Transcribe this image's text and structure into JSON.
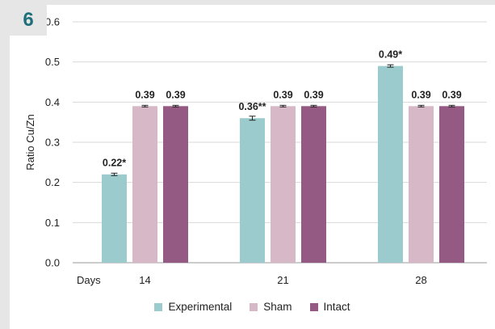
{
  "figure_label": "6",
  "chart_data": {
    "type": "bar",
    "x_prefix_label": "Days",
    "categories": [
      "14",
      "21",
      "28"
    ],
    "series": [
      {
        "name": "Experimental",
        "color": "#9ccbcd",
        "values": [
          0.22,
          0.36,
          0.49
        ],
        "errors": [
          0.003,
          0.005,
          0.003
        ],
        "labels": [
          "0.22*",
          "0.36**",
          "0.49*"
        ]
      },
      {
        "name": "Sham",
        "color": "#d6b8c6",
        "values": [
          0.39,
          0.39,
          0.39
        ],
        "errors": [
          0.002,
          0.002,
          0.002
        ],
        "labels": [
          "0.39",
          "0.39",
          "0.39"
        ]
      },
      {
        "name": "Intact",
        "color": "#955a83",
        "values": [
          0.39,
          0.39,
          0.39
        ],
        "errors": [
          0.002,
          0.002,
          0.002
        ],
        "labels": [
          "0.39",
          "0.39",
          "0.39"
        ]
      }
    ],
    "ylabel": "Ratio Cu/Zn",
    "ylim": [
      0,
      0.6
    ],
    "yticks": [
      "0.0",
      "0.1",
      "0.2",
      "0.3",
      "0.4",
      "0.5",
      "0.6"
    ],
    "grid": true,
    "legend_position": "bottom"
  }
}
